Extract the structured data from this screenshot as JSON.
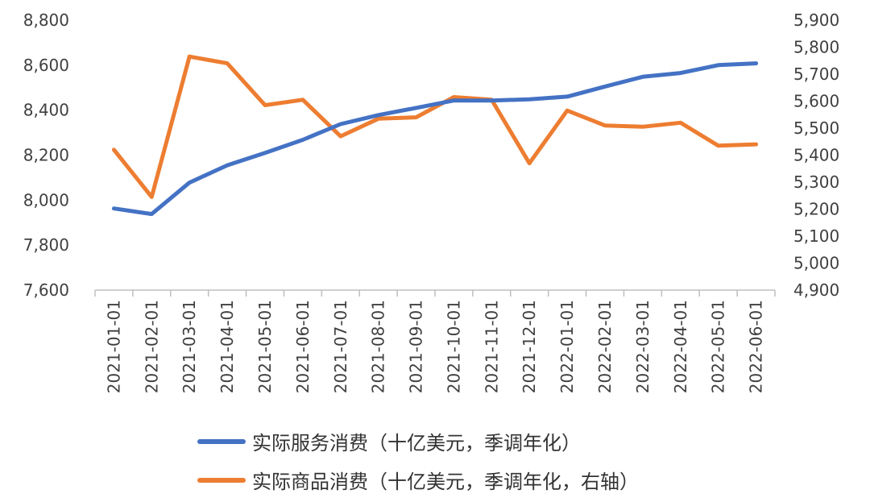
{
  "colors": {
    "series1": "#4472C4",
    "series2": "#ED7D31",
    "axis": "#BFBFBF",
    "text": "#404040"
  },
  "chart_data": {
    "type": "line",
    "categories": [
      "2021-01-01",
      "2021-02-01",
      "2021-03-01",
      "2021-04-01",
      "2021-05-01",
      "2021-06-01",
      "2021-07-01",
      "2021-08-01",
      "2021-09-01",
      "2021-10-01",
      "2021-11-01",
      "2021-12-01",
      "2022-01-01",
      "2022-02-01",
      "2022-03-01",
      "2022-04-01",
      "2022-05-01",
      "2022-06-01"
    ],
    "left_axis": {
      "ylim": [
        7600,
        8800
      ],
      "ticks": [
        "7,600",
        "7,800",
        "8,000",
        "8,200",
        "8,400",
        "8,600",
        "8,800"
      ]
    },
    "right_axis": {
      "ylim": [
        4900,
        5900
      ],
      "ticks": [
        "4,900",
        "5,000",
        "5,100",
        "5,200",
        "5,300",
        "5,400",
        "5,500",
        "5,600",
        "5,700",
        "5,800",
        "5,900"
      ]
    },
    "grid": false,
    "legend_position": "bottom",
    "series": [
      {
        "name": "实际服务消费（十亿美元，季调年化）",
        "axis": "left",
        "values": [
          7963,
          7938,
          8078,
          8155,
          8210,
          8268,
          8338,
          8378,
          8410,
          8443,
          8443,
          8448,
          8460,
          8505,
          8548,
          8565,
          8600,
          8608
        ]
      },
      {
        "name": "实际商品消费（十亿美元，季调年化，右轴）",
        "axis": "right",
        "values": [
          5420,
          5245,
          5765,
          5740,
          5585,
          5605,
          5470,
          5535,
          5540,
          5615,
          5605,
          5370,
          5565,
          5510,
          5505,
          5520,
          5435,
          5440
        ]
      }
    ]
  }
}
